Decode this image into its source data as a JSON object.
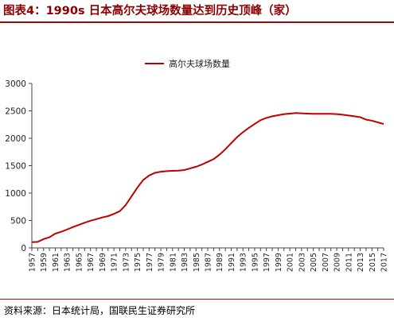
{
  "figure": {
    "title": "图表4：1990s 日本高尔夫球场数量达到历史顶峰（家）",
    "source": "资料来源：日本统计局，国联民生证券研究所"
  },
  "colors": {
    "series": "#c00000",
    "title": "#8b0000",
    "rule": "#9c0c0c"
  },
  "chart_data": {
    "type": "line",
    "title": "",
    "xlabel": "",
    "ylabel": "",
    "legend_position": "top",
    "grid": false,
    "ylim": [
      0,
      3000
    ],
    "yticks": [
      0,
      500,
      1000,
      1500,
      2000,
      2500,
      3000
    ],
    "xticks": [
      1957,
      1959,
      1961,
      1963,
      1965,
      1967,
      1969,
      1971,
      1973,
      1975,
      1977,
      1979,
      1981,
      1983,
      1985,
      1987,
      1989,
      1991,
      1993,
      1995,
      1997,
      1999,
      2001,
      2003,
      2005,
      2007,
      2009,
      2011,
      2013,
      2015,
      2017
    ],
    "x": [
      1957,
      1958,
      1959,
      1960,
      1961,
      1962,
      1963,
      1964,
      1965,
      1966,
      1967,
      1968,
      1969,
      1970,
      1971,
      1972,
      1973,
      1974,
      1975,
      1976,
      1977,
      1978,
      1979,
      1980,
      1981,
      1982,
      1983,
      1984,
      1985,
      1986,
      1987,
      1988,
      1989,
      1990,
      1991,
      1992,
      1993,
      1994,
      1995,
      1996,
      1997,
      1998,
      1999,
      2000,
      2001,
      2002,
      2003,
      2004,
      2005,
      2006,
      2007,
      2008,
      2009,
      2010,
      2011,
      2012,
      2013,
      2014,
      2015,
      2016,
      2017
    ],
    "series": [
      {
        "name": "高尔夫球场数量",
        "values": [
          105,
          110,
          160,
          195,
          260,
          295,
          335,
          380,
          420,
          460,
          495,
          525,
          555,
          580,
          620,
          670,
          780,
          940,
          1100,
          1240,
          1320,
          1370,
          1390,
          1400,
          1405,
          1410,
          1420,
          1450,
          1480,
          1520,
          1570,
          1620,
          1700,
          1800,
          1910,
          2020,
          2110,
          2190,
          2260,
          2330,
          2370,
          2400,
          2420,
          2440,
          2450,
          2460,
          2455,
          2450,
          2445,
          2445,
          2445,
          2445,
          2440,
          2430,
          2415,
          2400,
          2385,
          2340,
          2320,
          2290,
          2260
        ]
      }
    ]
  }
}
